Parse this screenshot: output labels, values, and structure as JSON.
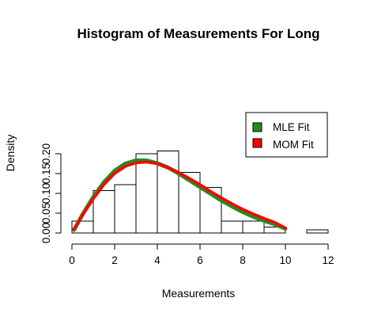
{
  "chart_data": {
    "type": "histogram",
    "title": "Histogram of Measurements For Long",
    "xlabel": "Measurements",
    "ylabel": "Density",
    "xlim": [
      0,
      12
    ],
    "ylim": [
      0,
      0.2
    ],
    "x_ticks": [
      0,
      2,
      4,
      6,
      8,
      10,
      12
    ],
    "y_ticks": [
      0.0,
      0.05,
      0.1,
      0.15,
      0.2
    ],
    "x_tick_labels": [
      "0",
      "2",
      "4",
      "6",
      "8",
      "10",
      "12"
    ],
    "y_tick_labels": [
      "0.00",
      "0.05",
      "0.10",
      "0.15",
      "0.20"
    ],
    "bins": [
      {
        "x0": 0,
        "x1": 1,
        "density": 0.03
      },
      {
        "x0": 1,
        "x1": 2,
        "density": 0.107
      },
      {
        "x0": 2,
        "x1": 3,
        "density": 0.122
      },
      {
        "x0": 3,
        "x1": 4,
        "density": 0.2
      },
      {
        "x0": 4,
        "x1": 5,
        "density": 0.207
      },
      {
        "x0": 5,
        "x1": 6,
        "density": 0.153
      },
      {
        "x0": 6,
        "x1": 7,
        "density": 0.115
      },
      {
        "x0": 7,
        "x1": 8,
        "density": 0.03
      },
      {
        "x0": 8,
        "x1": 9,
        "density": 0.03
      },
      {
        "x0": 9,
        "x1": 10,
        "density": 0.015
      },
      {
        "x0": 10,
        "x1": 11,
        "density": 0
      },
      {
        "x0": 11,
        "x1": 12,
        "density": 0.008
      }
    ],
    "series": [
      {
        "name": "MLE Fit",
        "color": "#228B22",
        "x": [
          0.1,
          0.5,
          1,
          1.5,
          2,
          2.5,
          3,
          3.5,
          4,
          4.5,
          5,
          5.5,
          6,
          6.5,
          7,
          7.5,
          8,
          8.5,
          9,
          9.5,
          10
        ],
        "y": [
          0.008,
          0.047,
          0.091,
          0.128,
          0.157,
          0.175,
          0.183,
          0.183,
          0.176,
          0.165,
          0.15,
          0.133,
          0.116,
          0.099,
          0.082,
          0.067,
          0.053,
          0.041,
          0.031,
          0.022,
          0.011
        ]
      },
      {
        "name": "MOM Fit",
        "color": "#FF0000",
        "x": [
          0.1,
          0.5,
          1,
          1.5,
          2,
          2.5,
          3,
          3.5,
          4,
          4.5,
          5,
          5.5,
          6,
          6.5,
          7,
          7.5,
          8,
          8.5,
          9,
          9.5,
          10
        ],
        "y": [
          0.009,
          0.045,
          0.086,
          0.122,
          0.15,
          0.168,
          0.177,
          0.179,
          0.175,
          0.166,
          0.153,
          0.138,
          0.122,
          0.105,
          0.089,
          0.074,
          0.06,
          0.048,
          0.037,
          0.027,
          0.013
        ]
      }
    ],
    "legend": {
      "position": "right",
      "entries": [
        {
          "label": "MLE Fit",
          "color": "#228B22"
        },
        {
          "label": "MOM Fit",
          "color": "#FF0000"
        }
      ]
    }
  }
}
